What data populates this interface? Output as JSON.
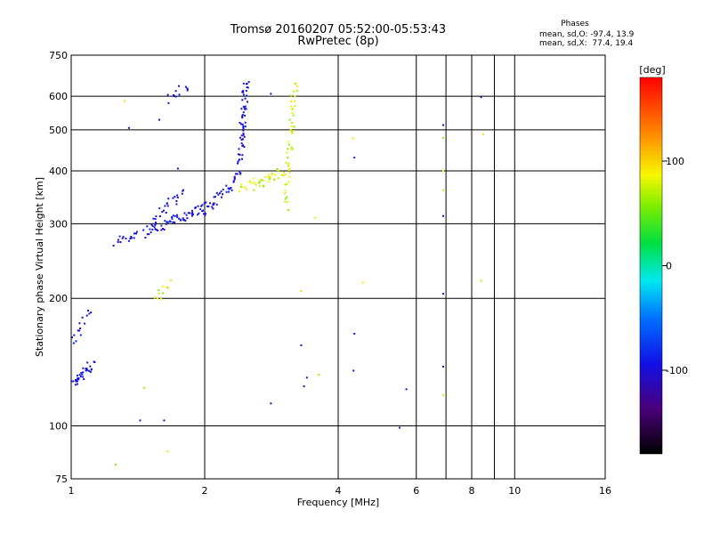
{
  "chart_data": {
    "type": "scatter",
    "title": "Tromsø 20160207 05:52:00-05:53:43",
    "subtitle": "RwPretec (8p)",
    "xlabel": "Frequency [MHz]",
    "ylabel": "Stationary phase Virtual Height [km]",
    "x_scale": "log2",
    "y_scale": "log",
    "xlim": [
      1,
      16
    ],
    "ylim": [
      75,
      750
    ],
    "x_ticks": [
      1,
      2,
      4,
      6,
      8,
      10,
      16
    ],
    "x_tick_labels": [
      "1",
      "2",
      "4",
      "6",
      "8",
      "10",
      "16"
    ],
    "y_ticks": [
      75,
      100,
      200,
      300,
      400,
      500,
      600,
      750
    ],
    "y_tick_labels": [
      "75",
      "100",
      "200",
      "300",
      "400",
      "500",
      "600",
      "750"
    ],
    "x_gridlines": [
      1,
      2,
      4,
      6,
      7,
      8,
      9,
      10,
      16
    ],
    "y_gridlines": [
      75,
      100,
      200,
      300,
      400,
      500,
      600,
      750
    ],
    "grid": true,
    "colorbar": {
      "title": "[deg]",
      "range": [
        -180,
        180
      ],
      "ticks": [
        100,
        0,
        -100
      ],
      "tick_labels": [
        "100",
        "0",
        "-100"
      ]
    },
    "phases_panel": {
      "title": "Phases",
      "line_o": "mean, sd,O: -97.4, 13.9",
      "line_x": "mean, sd,X:  77.4, 19.4"
    },
    "series": [
      {
        "name": "O",
        "phase_mean": -97.4,
        "phase_sd": 13.9,
        "traces": [
          {
            "from": [
              1.0,
              125
            ],
            "to": [
              1.12,
              140
            ],
            "n": 35
          },
          {
            "from": [
              1.0,
              155
            ],
            "to": [
              1.1,
              185
            ],
            "n": 16
          },
          {
            "from": [
              1.25,
              270
            ],
            "to": [
              1.45,
              285
            ],
            "n": 18
          },
          {
            "from": [
              1.5,
              288
            ],
            "to": [
              2.0,
              330
            ],
            "n": 60
          },
          {
            "from": [
              2.0,
              320
            ],
            "to": [
              2.25,
              360
            ],
            "n": 25
          },
          {
            "from": [
              2.25,
              360
            ],
            "to": [
              2.4,
              400
            ],
            "n": 15
          },
          {
            "from": [
              2.4,
              420
            ],
            "to": [
              2.48,
              650
            ],
            "n": 55
          },
          {
            "from": [
              1.65,
              590
            ],
            "to": [
              1.85,
              640
            ],
            "n": 12
          },
          {
            "from": [
              1.5,
              300
            ],
            "to": [
              1.8,
              360
            ],
            "n": 25
          }
        ],
        "points": [
          [
            1.35,
            505
          ],
          [
            1.58,
            528
          ],
          [
            1.74,
            405
          ],
          [
            2.82,
            608
          ],
          [
            4.35,
            430
          ],
          [
            4.35,
            165
          ],
          [
            4.33,
            135
          ],
          [
            6.9,
            513
          ],
          [
            6.9,
            313
          ],
          [
            6.9,
            205
          ],
          [
            6.9,
            138
          ],
          [
            8.4,
            597
          ],
          [
            5.7,
            122
          ],
          [
            5.5,
            99
          ],
          [
            2.82,
            113
          ],
          [
            3.35,
            124
          ],
          [
            3.3,
            155
          ],
          [
            1.43,
            103
          ],
          [
            1.62,
            103
          ],
          [
            3.4,
            130
          ]
        ]
      },
      {
        "name": "X",
        "phase_mean": 77.4,
        "phase_sd": 19.4,
        "traces": [
          {
            "from": [
              3.05,
              330
            ],
            "to": [
              3.2,
              650
            ],
            "n": 50
          },
          {
            "from": [
              2.6,
              365
            ],
            "to": [
              3.0,
              400
            ],
            "n": 30
          },
          {
            "from": [
              2.4,
              360
            ],
            "to": [
              2.55,
              380
            ],
            "n": 10
          },
          {
            "from": [
              1.55,
              198
            ],
            "to": [
              1.66,
              220
            ],
            "n": 10
          }
        ],
        "points": [
          [
            1.32,
            585
          ],
          [
            4.32,
            477
          ],
          [
            6.9,
            478
          ],
          [
            6.9,
            400
          ],
          [
            6.9,
            360
          ],
          [
            8.5,
            488
          ],
          [
            8.4,
            220
          ],
          [
            4.55,
            218
          ],
          [
            3.62,
            132
          ],
          [
            3.3,
            208
          ],
          [
            6.9,
            118
          ],
          [
            1.65,
            87
          ],
          [
            1.26,
            81
          ],
          [
            1.46,
            123
          ],
          [
            3.55,
            310
          ]
        ]
      }
    ]
  }
}
